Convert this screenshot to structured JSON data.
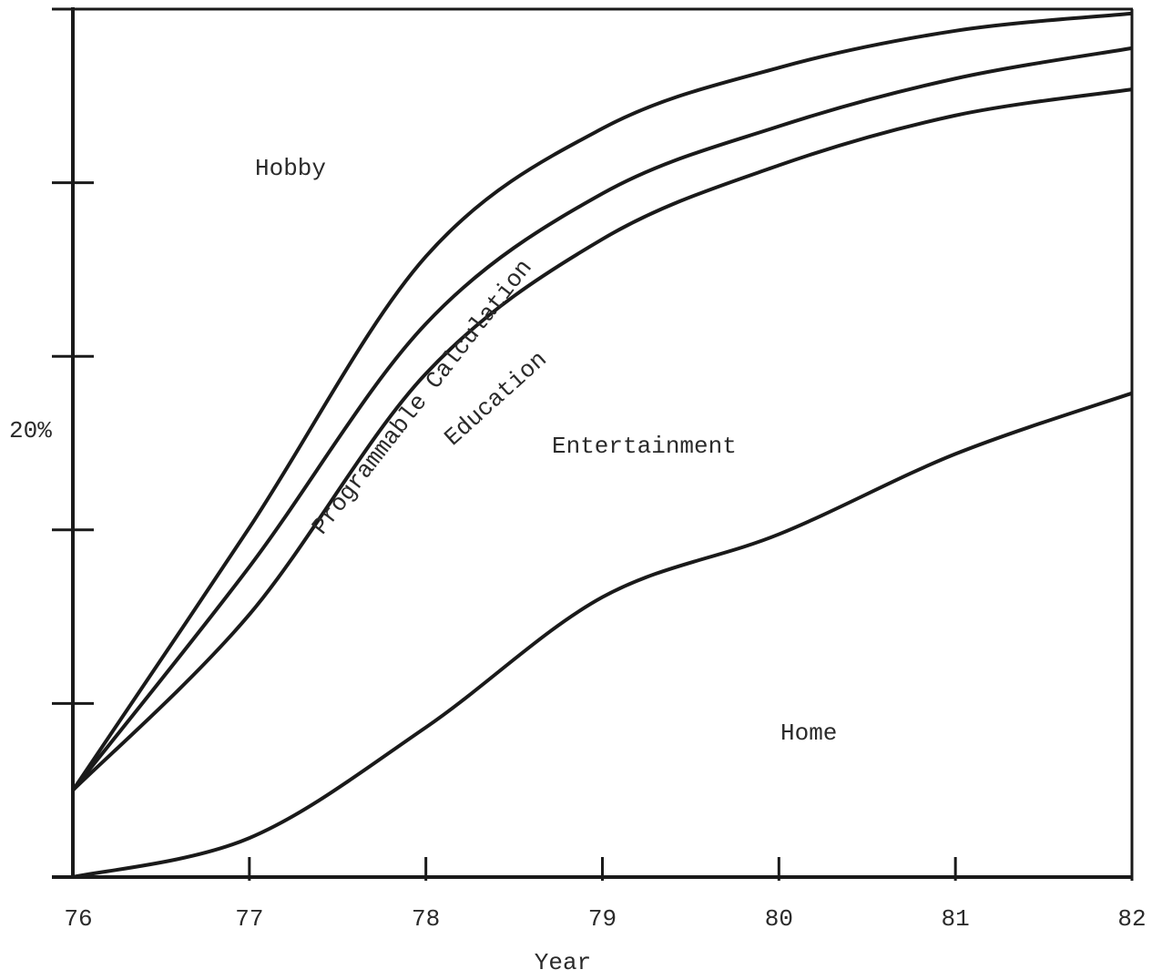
{
  "chart_data": {
    "type": "area",
    "title": "",
    "xlabel": "Year",
    "ylabel": "",
    "x_ticks": [
      "76",
      "77",
      "78",
      "79",
      "80",
      "81",
      "82"
    ],
    "x_range": [
      76,
      82
    ],
    "y_unit": "percent",
    "y_range": [
      0,
      40
    ],
    "y_tick_values": [
      0,
      8,
      16,
      24,
      32,
      40
    ],
    "y_tick_labels": [
      {
        "value": 20,
        "label": "20%"
      }
    ],
    "grid": false,
    "x": [
      76,
      77,
      78,
      79,
      80,
      81,
      82
    ],
    "boundaries": [
      {
        "name": "Home",
        "values": [
          0,
          1.8,
          6.9,
          12.9,
          15.8,
          19.5,
          22.3
        ]
      },
      {
        "name": "Entertainment",
        "values": [
          4.0,
          12.1,
          23.2,
          29.4,
          32.8,
          35.1,
          36.3
        ]
      },
      {
        "name": "Education",
        "values": [
          4.0,
          14.3,
          25.5,
          31.5,
          34.6,
          36.8,
          38.2
        ]
      },
      {
        "name": "Programmable Calculation",
        "values": [
          4.0,
          16.1,
          28.6,
          34.5,
          37.3,
          39.0,
          39.8
        ]
      }
    ],
    "region_labels": [
      "Hobby",
      "Programmable Calculation",
      "Education",
      "Entertainment",
      "Home"
    ]
  }
}
